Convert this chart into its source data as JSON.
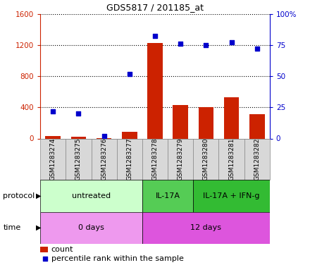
{
  "title": "GDS5817 / 201185_at",
  "samples": [
    "GSM1283274",
    "GSM1283275",
    "GSM1283276",
    "GSM1283277",
    "GSM1283278",
    "GSM1283279",
    "GSM1283280",
    "GSM1283281",
    "GSM1283282"
  ],
  "count_values": [
    30,
    20,
    5,
    90,
    1230,
    430,
    400,
    530,
    310
  ],
  "percentile_values": [
    22,
    20,
    2,
    52,
    82,
    76,
    75,
    77,
    72
  ],
  "bar_color": "#cc2200",
  "dot_color": "#0000cc",
  "ylim_left": [
    0,
    1600
  ],
  "ylim_right": [
    0,
    100
  ],
  "yticks_left": [
    0,
    400,
    800,
    1200,
    1600
  ],
  "yticks_right": [
    0,
    25,
    50,
    75,
    100
  ],
  "ytick_labels_left": [
    "0",
    "400",
    "800",
    "1200",
    "1600"
  ],
  "ytick_labels_right": [
    "0",
    "25",
    "50",
    "75",
    "100%"
  ],
  "protocol_groups": [
    {
      "label": "untreated",
      "start": 0,
      "end": 4,
      "color": "#ccffcc"
    },
    {
      "label": "IL-17A",
      "start": 4,
      "end": 6,
      "color": "#55cc55"
    },
    {
      "label": "IL-17A + IFN-g",
      "start": 6,
      "end": 9,
      "color": "#33bb33"
    }
  ],
  "time_groups": [
    {
      "label": "0 days",
      "start": 0,
      "end": 4,
      "color": "#ee88ee"
    },
    {
      "label": "12 days",
      "start": 4,
      "end": 9,
      "color": "#dd55dd"
    }
  ],
  "protocol_label": "protocol",
  "time_label": "time",
  "legend_count": "count",
  "legend_percentile": "percentile rank within the sample",
  "tick_color_left": "#cc2200",
  "tick_color_right": "#0000cc",
  "sample_box_color": "#d8d8d8",
  "sample_box_line_color": "#888888"
}
